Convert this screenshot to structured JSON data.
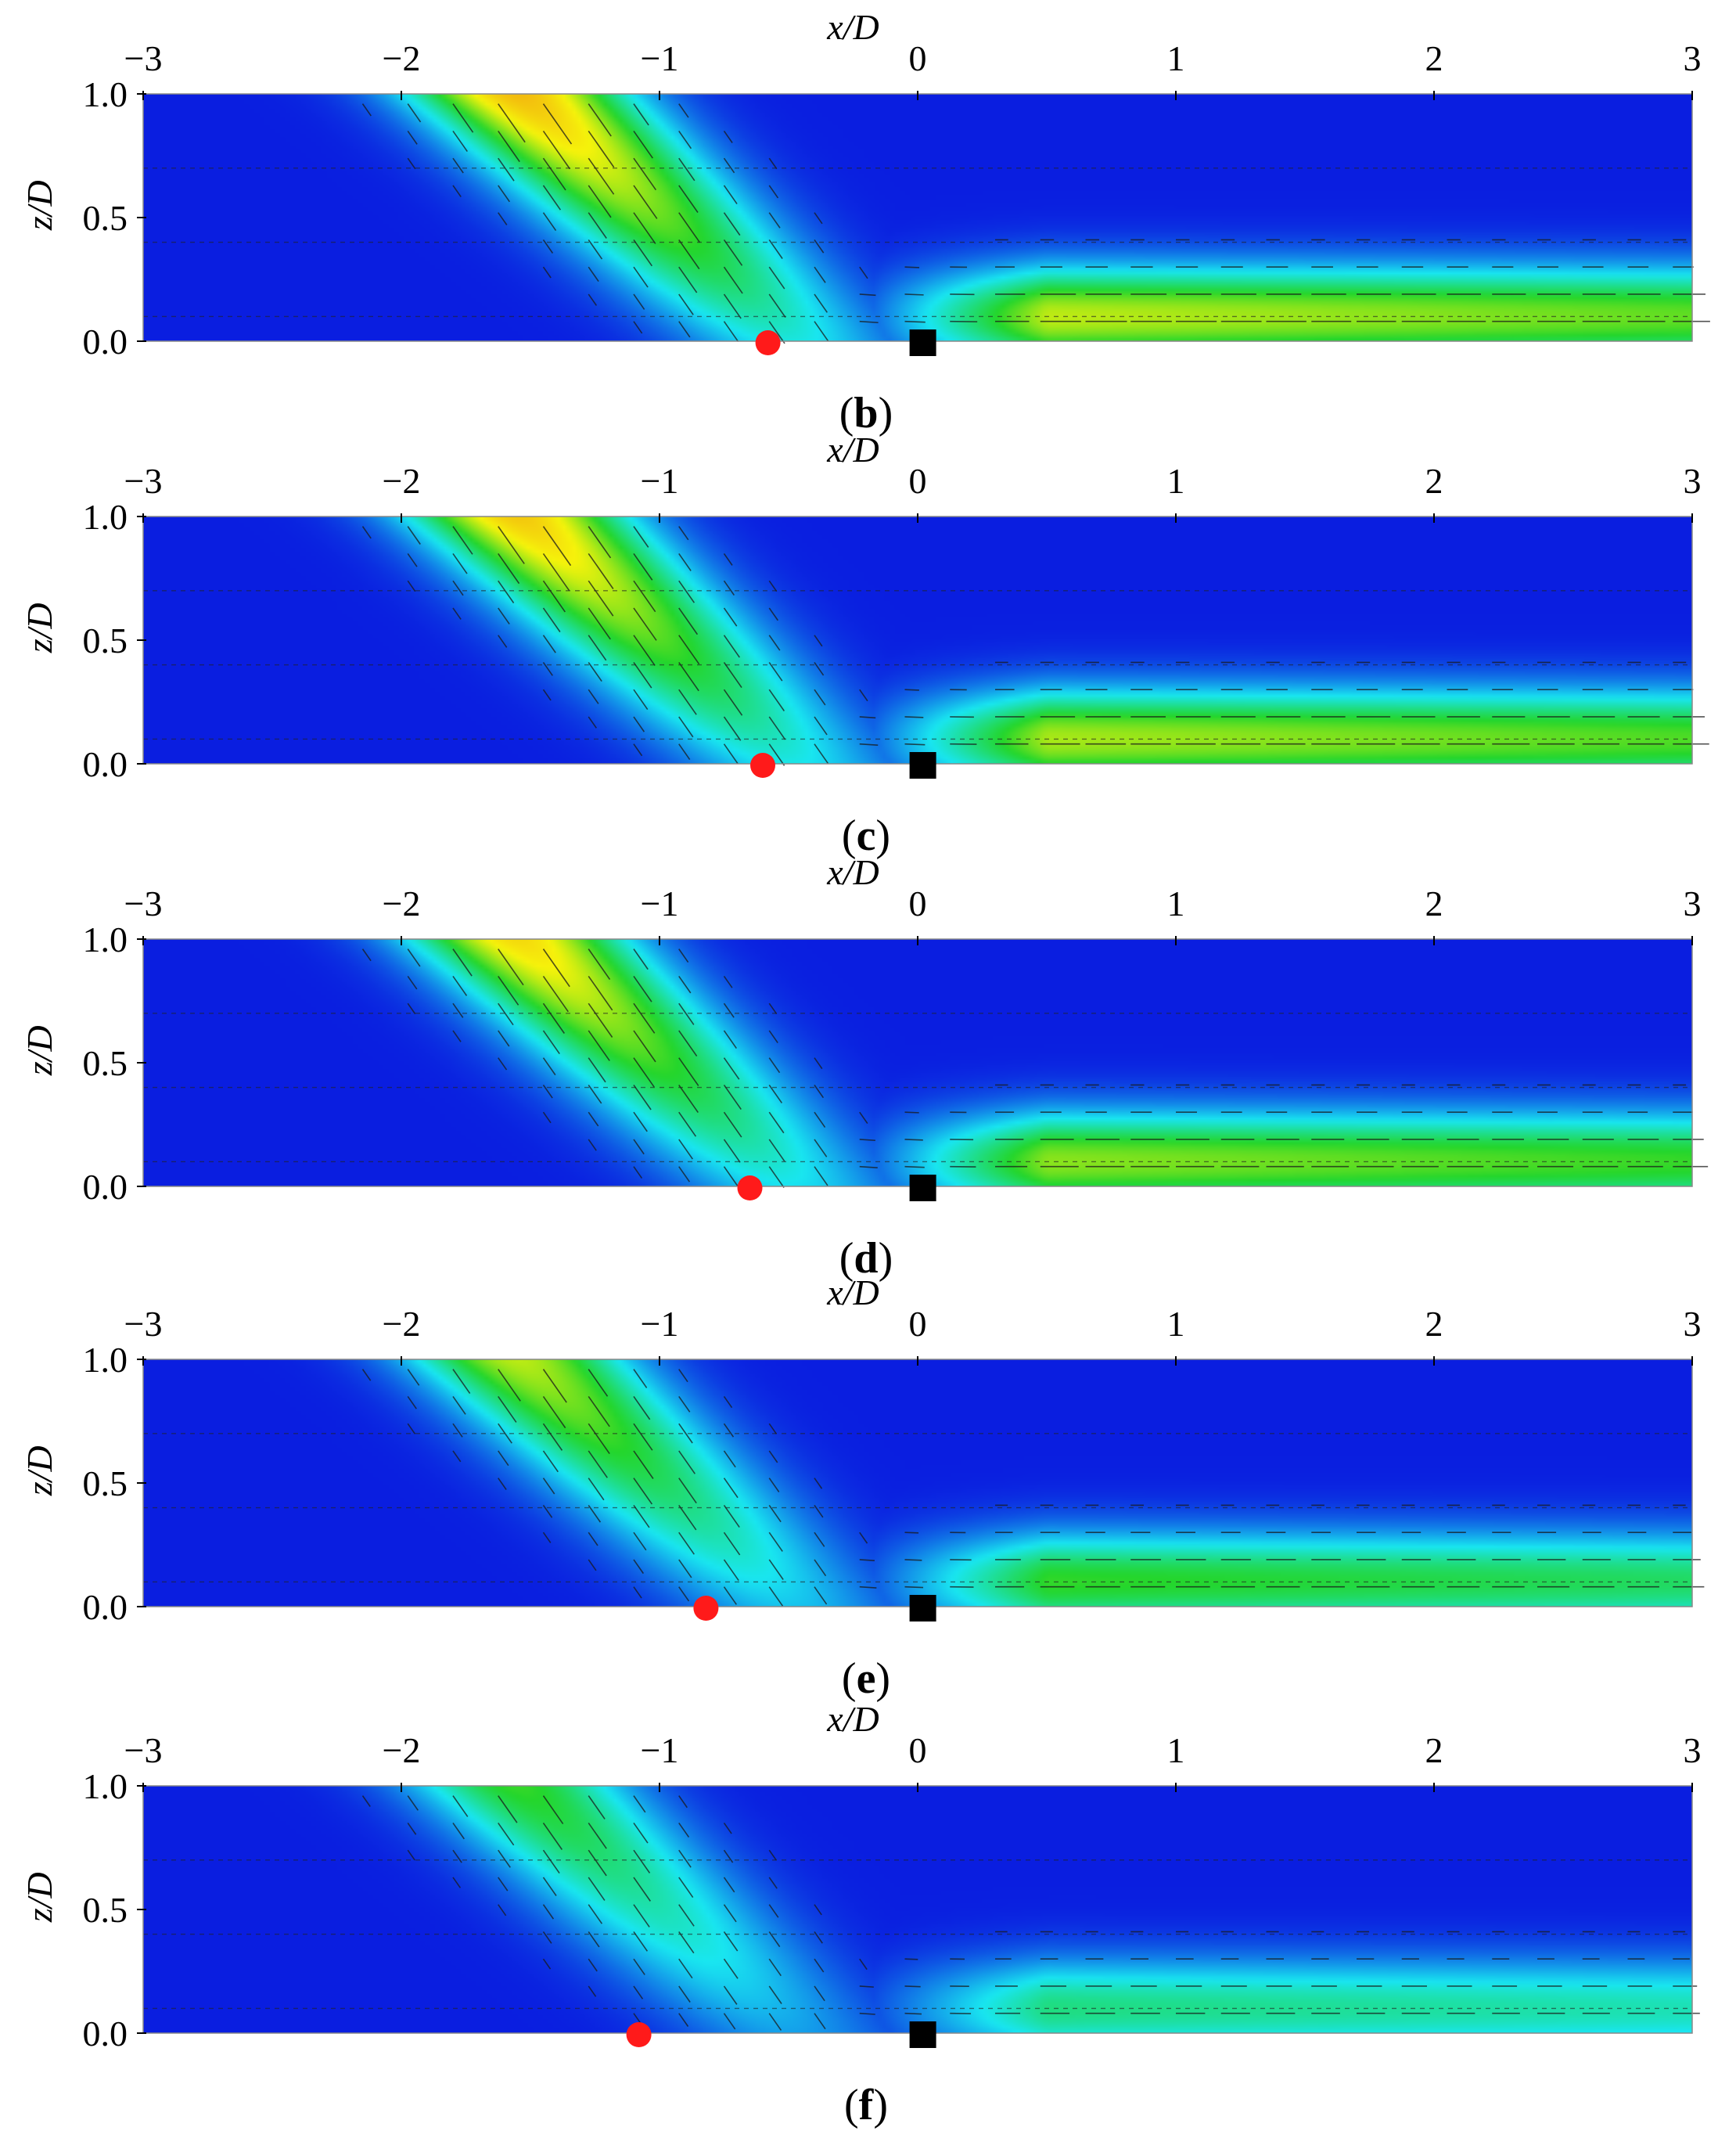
{
  "chart_data": [
    {
      "type": "heatmap",
      "panel_label": "b",
      "xlabel": "x/D",
      "ylabel": "z/D",
      "xlim": [
        -3,
        3
      ],
      "ylim": [
        0,
        1
      ],
      "x_ticks": [
        "−3",
        "−2",
        "−1",
        "0",
        "1",
        "2",
        "3"
      ],
      "y_ticks": [
        "0.0",
        "0.5",
        "1.0"
      ],
      "peak_level": 0.85,
      "red_marker_x": -0.58,
      "square_marker_x": 0.02
    },
    {
      "type": "heatmap",
      "panel_label": "c",
      "xlabel": "x/D",
      "ylabel": "z/D",
      "xlim": [
        -3,
        3
      ],
      "ylim": [
        0,
        1
      ],
      "x_ticks": [
        "−3",
        "−2",
        "−1",
        "0",
        "1",
        "2",
        "3"
      ],
      "y_ticks": [
        "0.0",
        "0.5",
        "1.0"
      ],
      "peak_level": 0.82,
      "red_marker_x": -0.6,
      "square_marker_x": 0.02
    },
    {
      "type": "heatmap",
      "panel_label": "d",
      "xlabel": "x/D",
      "ylabel": "z/D",
      "xlim": [
        -3,
        3
      ],
      "ylim": [
        0,
        1
      ],
      "x_ticks": [
        "−3",
        "−2",
        "−1",
        "0",
        "1",
        "2",
        "3"
      ],
      "y_ticks": [
        "0.0",
        "0.5",
        "1.0"
      ],
      "peak_level": 0.78,
      "red_marker_x": -0.65,
      "square_marker_x": 0.02
    },
    {
      "type": "heatmap",
      "panel_label": "e",
      "xlabel": "x/D",
      "ylabel": "z/D",
      "xlim": [
        -3,
        3
      ],
      "ylim": [
        0,
        1
      ],
      "x_ticks": [
        "−3",
        "−2",
        "−1",
        "0",
        "1",
        "2",
        "3"
      ],
      "y_ticks": [
        "0.0",
        "0.5",
        "1.0"
      ],
      "peak_level": 0.66,
      "red_marker_x": -0.82,
      "square_marker_x": 0.02
    },
    {
      "type": "heatmap",
      "panel_label": "f",
      "xlabel": "x/D",
      "ylabel": "z/D",
      "xlim": [
        -3,
        3
      ],
      "ylim": [
        0,
        1
      ],
      "x_ticks": [
        "−3",
        "−2",
        "−1",
        "0",
        "1",
        "2",
        "3"
      ],
      "y_ticks": [
        "0.0",
        "0.5",
        "1.0"
      ],
      "peak_level": 0.52,
      "red_marker_x": -1.08,
      "square_marker_x": 0.02
    }
  ],
  "colors": {
    "low": "#0a1ee0",
    "mid_low": "#19e6f0",
    "mid": "#24d62c",
    "mid_high": "#f6f30b",
    "high": "#ee7d12",
    "red_marker": "#ff1a1a",
    "square_marker": "#000000"
  }
}
